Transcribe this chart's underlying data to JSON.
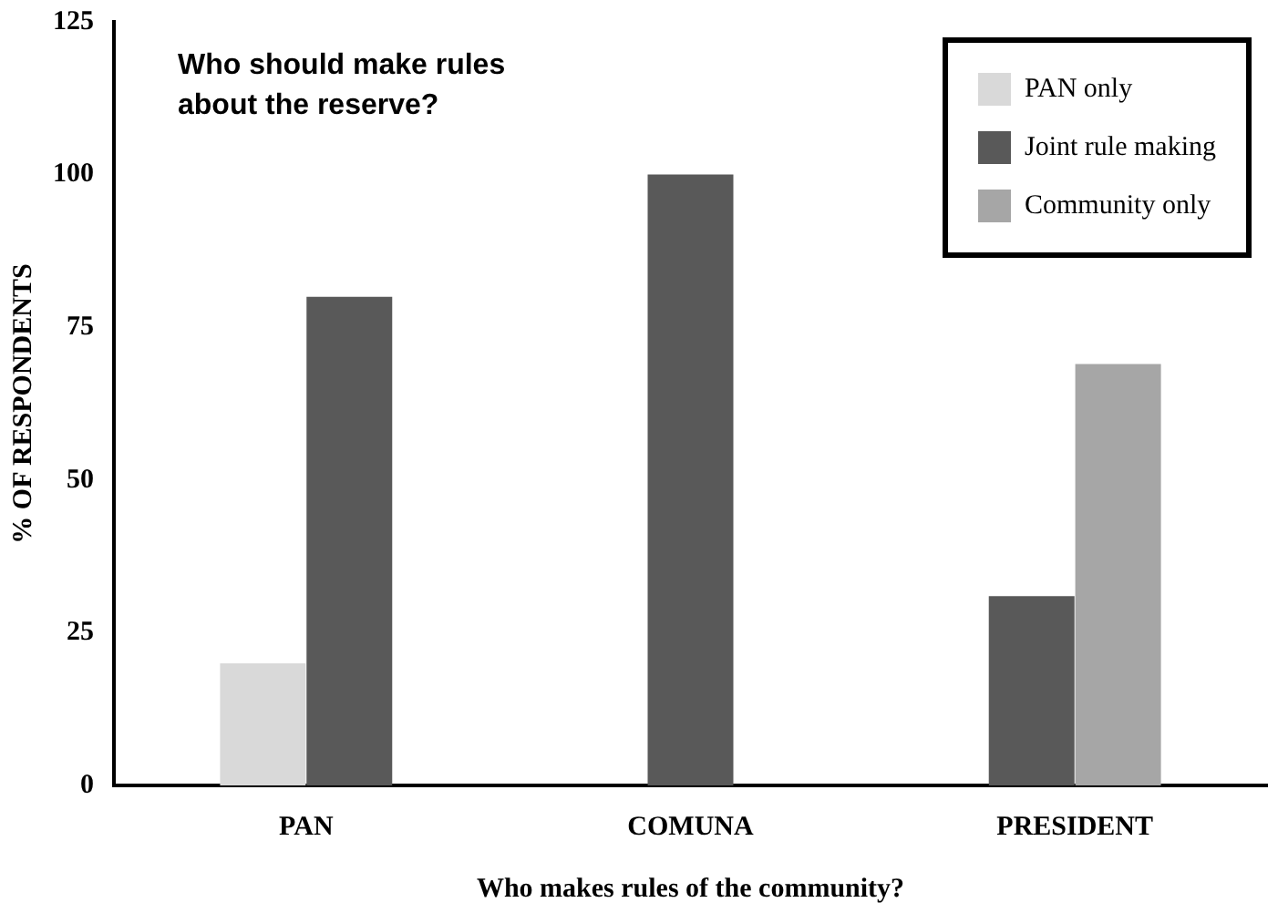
{
  "chart_data": {
    "type": "bar",
    "annotations": [
      "Who should make rules about the reserve?"
    ],
    "xlabel": "Who makes rules of the community?",
    "ylabel": "% OF RESPONDENTS",
    "categories": [
      "PAN",
      "COMUNA",
      "PRESIDENT"
    ],
    "series": [
      {
        "name": "PAN only",
        "color": "#d9d9d9",
        "values": [
          20,
          null,
          null
        ]
      },
      {
        "name": "Joint rule making",
        "color": "#595959",
        "values": [
          80,
          100,
          31
        ]
      },
      {
        "name": "Community only",
        "color": "#a6a6a6",
        "values": [
          null,
          null,
          69
        ]
      }
    ],
    "ylim": [
      0,
      125
    ],
    "yticks": [
      0,
      25,
      50,
      75,
      100,
      125
    ],
    "grid": false,
    "legend": "top right"
  }
}
